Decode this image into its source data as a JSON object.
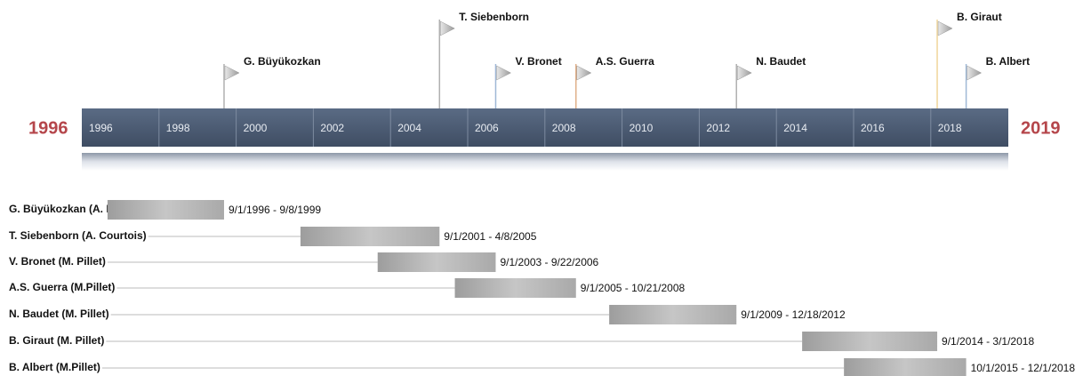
{
  "start_label": "1996",
  "end_label": "2019",
  "axis_years": [
    "1996",
    "1998",
    "2000",
    "2002",
    "2004",
    "2006",
    "2008",
    "2010",
    "2012",
    "2014",
    "2016",
    "2018"
  ],
  "milestones": [
    "G. Büyükozkan",
    "T. Siebenborn",
    "V. Bronet",
    "A.S. Guerra",
    "N. Baudet",
    "B. Giraut",
    "B. Albert"
  ],
  "rows": [
    {
      "name": "G. Büyükozkan (A. Haurat)",
      "range": "9/1/1996 - 9/8/1999"
    },
    {
      "name": "T. Siebenborn (A. Courtois)",
      "range": "9/1/2001 - 4/8/2005"
    },
    {
      "name": "V. Bronet (M. Pillet)",
      "range": "9/1/2003 - 9/22/2006"
    },
    {
      "name": "A.S. Guerra (M.Pillet)",
      "range": "9/1/2005 - 10/21/2008"
    },
    {
      "name": "N. Baudet (M. Pillet)",
      "range": "9/1/2009 - 12/18/2012"
    },
    {
      "name": "B. Giraut (M. Pillet)",
      "range": "9/1/2014 - 3/1/2018"
    },
    {
      "name": "B. Albert (M.Pillet)",
      "range": "10/1/2015 - 12/1/2018"
    }
  ]
}
